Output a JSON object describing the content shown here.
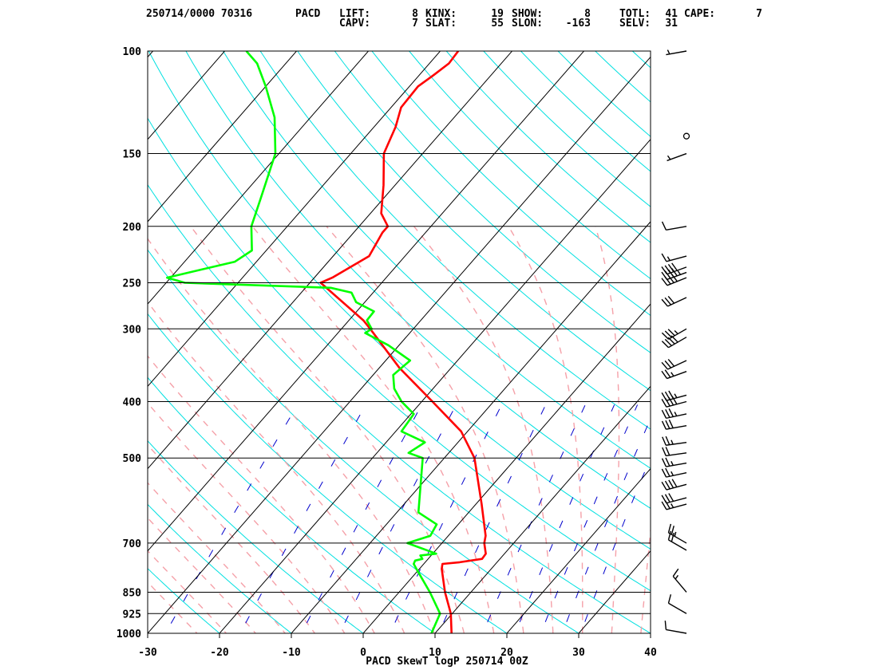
{
  "header": {
    "id_line": "250714/0000 70316",
    "station": "PACD",
    "indices": [
      {
        "label": "LIFT:",
        "value": "8"
      },
      {
        "label": "KINX:",
        "value": "19"
      },
      {
        "label": "SHOW:",
        "value": "8"
      },
      {
        "label": "TOTL:",
        "value": "41"
      },
      {
        "label": "CAPE:",
        "value": "7"
      },
      {
        "label": "CAPV:",
        "value": "7"
      },
      {
        "label": "SLAT:",
        "value": "55"
      },
      {
        "label": "SLON:",
        "value": "-163"
      },
      {
        "label": "SELV:",
        "value": "31"
      }
    ]
  },
  "footer": "PACD SkewT logP 250714 00Z",
  "chart_data": {
    "type": "line",
    "title": "PACD SkewT logP 250714 00Z",
    "x_axis": {
      "range": [
        -30,
        40
      ],
      "ticks": [
        "-30",
        "-20",
        "-10",
        "0",
        "10",
        "20",
        "30",
        "40"
      ]
    },
    "y_axis": {
      "scale": "log",
      "range": [
        1000,
        100
      ],
      "ticks": [
        "100",
        "150",
        "200",
        "250",
        "300",
        "400",
        "500",
        "700",
        "850",
        "925",
        "1000"
      ]
    },
    "colors": {
      "temperature": "#ff0000",
      "dewpoint": "#00ff00",
      "isotherm": "#000000",
      "dry_adiabat": "#00e0e0",
      "moist_adiabat": "#f5a0a8",
      "mixing_ratio": "#0000cc"
    },
    "series": [
      {
        "key": "temperature",
        "points": [
          [
            1000,
            12.3
          ],
          [
            925,
            9.8
          ],
          [
            850,
            6.4
          ],
          [
            775,
            3.1
          ],
          [
            760,
            2.6
          ],
          [
            755,
            4.8
          ],
          [
            745,
            7.5
          ],
          [
            730,
            7.4
          ],
          [
            700,
            5.9
          ],
          [
            680,
            5.2
          ],
          [
            600,
            0.8
          ],
          [
            500,
            -5.8
          ],
          [
            450,
            -10.9
          ],
          [
            400,
            -18.5
          ],
          [
            350,
            -27.2
          ],
          [
            300,
            -36.0
          ],
          [
            290,
            -38.0
          ],
          [
            250,
            -48.5
          ],
          [
            245,
            -47.5
          ],
          [
            225,
            -45.0
          ],
          [
            205,
            -46.0
          ],
          [
            200,
            -46.0
          ],
          [
            190,
            -48.5
          ],
          [
            170,
            -51.6
          ],
          [
            150,
            -55.4
          ],
          [
            135,
            -57.0
          ],
          [
            125,
            -58.6
          ],
          [
            115,
            -58.8
          ],
          [
            110,
            -58.0
          ],
          [
            105,
            -57.3
          ],
          [
            100,
            -57.5
          ]
        ]
      },
      {
        "key": "dewpoint",
        "points": [
          [
            1000,
            9.5
          ],
          [
            925,
            8.3
          ],
          [
            850,
            4.3
          ],
          [
            780,
            -0.1
          ],
          [
            760,
            -1.4
          ],
          [
            750,
            -1.6
          ],
          [
            745,
            -0.8
          ],
          [
            735,
            -1.5
          ],
          [
            730,
            0.5
          ],
          [
            700,
            -4.8
          ],
          [
            680,
            -2.5
          ],
          [
            650,
            -3.0
          ],
          [
            620,
            -7.0
          ],
          [
            500,
            -13.0
          ],
          [
            490,
            -15.6
          ],
          [
            470,
            -14.6
          ],
          [
            450,
            -19.2
          ],
          [
            420,
            -19.6
          ],
          [
            400,
            -22.8
          ],
          [
            380,
            -25.4
          ],
          [
            360,
            -27.2
          ],
          [
            340,
            -26.6
          ],
          [
            320,
            -31.5
          ],
          [
            305,
            -36.2
          ],
          [
            300,
            -35.8
          ],
          [
            290,
            -37.5
          ],
          [
            280,
            -37.6
          ],
          [
            270,
            -41.2
          ],
          [
            260,
            -43.0
          ],
          [
            255,
            -46.5
          ],
          [
            250,
            -67.4
          ],
          [
            245,
            -70.5
          ],
          [
            230,
            -63.0
          ],
          [
            220,
            -62.0
          ],
          [
            200,
            -65.0
          ],
          [
            180,
            -67.0
          ],
          [
            150,
            -70.5
          ],
          [
            130,
            -75.0
          ],
          [
            115,
            -80.0
          ],
          [
            105,
            -84.0
          ],
          [
            100,
            -87.0
          ]
        ]
      }
    ],
    "wind_barbs": [
      {
        "p": 100,
        "dir": 260,
        "spd": 5
      },
      {
        "p": 140,
        "dir": 0,
        "spd": 0
      },
      {
        "p": 150,
        "dir": 250,
        "spd": 5
      },
      {
        "p": 200,
        "dir": 260,
        "spd": 10
      },
      {
        "p": 225,
        "dir": 255,
        "spd": 15
      },
      {
        "p": 235,
        "dir": 250,
        "spd": 40
      },
      {
        "p": 240,
        "dir": 250,
        "spd": 45
      },
      {
        "p": 245,
        "dir": 248,
        "spd": 40
      },
      {
        "p": 265,
        "dir": 245,
        "spd": 30
      },
      {
        "p": 300,
        "dir": 240,
        "spd": 35
      },
      {
        "p": 310,
        "dir": 240,
        "spd": 40
      },
      {
        "p": 340,
        "dir": 245,
        "spd": 30
      },
      {
        "p": 355,
        "dir": 250,
        "spd": 25
      },
      {
        "p": 390,
        "dir": 255,
        "spd": 35
      },
      {
        "p": 400,
        "dir": 255,
        "spd": 40
      },
      {
        "p": 420,
        "dir": 258,
        "spd": 35
      },
      {
        "p": 440,
        "dir": 260,
        "spd": 30
      },
      {
        "p": 470,
        "dir": 262,
        "spd": 25
      },
      {
        "p": 490,
        "dir": 262,
        "spd": 20
      },
      {
        "p": 510,
        "dir": 260,
        "spd": 25
      },
      {
        "p": 530,
        "dir": 258,
        "spd": 25
      },
      {
        "p": 555,
        "dir": 255,
        "spd": 40
      },
      {
        "p": 585,
        "dir": 255,
        "spd": 30
      },
      {
        "p": 600,
        "dir": 255,
        "spd": 25
      },
      {
        "p": 700,
        "dir": 300,
        "spd": 25
      },
      {
        "p": 720,
        "dir": 300,
        "spd": 20
      },
      {
        "p": 850,
        "dir": 320,
        "spd": 15
      },
      {
        "p": 925,
        "dir": 300,
        "spd": 10
      },
      {
        "p": 1000,
        "dir": 280,
        "spd": 10
      }
    ]
  }
}
